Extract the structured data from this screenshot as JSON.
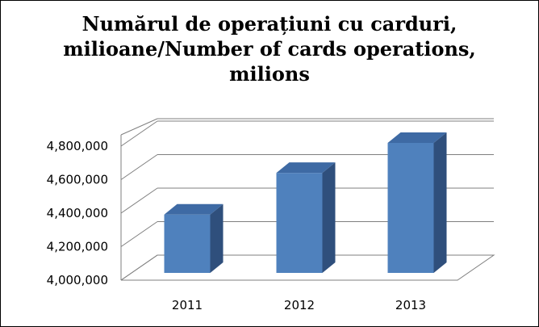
{
  "chart_data": {
    "type": "bar",
    "title_lines": [
      "Numărul de operațiuni cu carduri,",
      "milioane/Number of cards operations,",
      "milions"
    ],
    "categories": [
      "2011",
      "2012",
      "2013"
    ],
    "values": [
      4350000,
      4600000,
      4780000
    ],
    "y_ticks": [
      "4,000,000",
      "4,200,000",
      "4,400,000",
      "4,600,000",
      "4,800,000"
    ],
    "ylim": [
      4000000,
      4800000
    ],
    "y_step": 200000,
    "grid": true,
    "legend": "none",
    "colors": {
      "bar_front": "#4f81bd",
      "bar_side": "#2f4f7c",
      "bar_top": "#3e6aa4",
      "gridline": "#7f7f7f",
      "text": "#000000"
    }
  }
}
